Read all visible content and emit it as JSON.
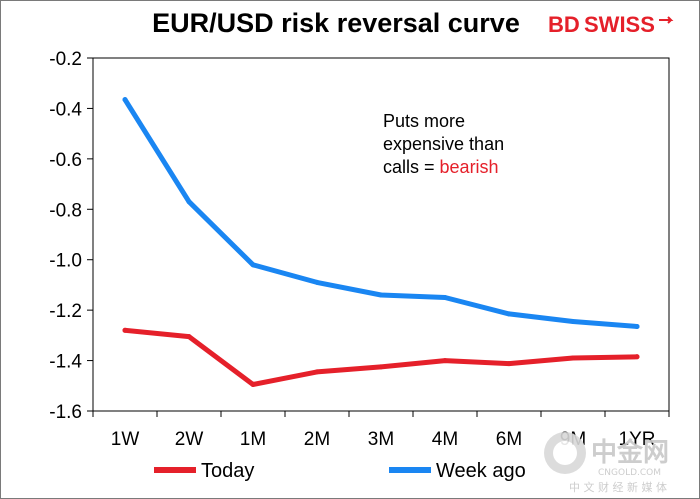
{
  "chart_data": {
    "type": "line",
    "title": "EUR/USD risk reversal curve",
    "categories": [
      "1W",
      "2W",
      "1M",
      "2M",
      "3M",
      "4M",
      "6M",
      "9M",
      "1YR"
    ],
    "series": [
      {
        "name": "Today",
        "color": "#e5202a",
        "values": [
          -1.28,
          -1.305,
          -1.495,
          -1.445,
          -1.425,
          -1.4,
          -1.412,
          -1.39,
          -1.385
        ]
      },
      {
        "name": "Week ago",
        "color": "#1a86f2",
        "values": [
          -0.365,
          -0.77,
          -1.02,
          -1.09,
          -1.14,
          -1.15,
          -1.215,
          -1.245,
          -1.265
        ]
      }
    ],
    "yticks": [
      "-0.2",
      "-0.4",
      "-0.6",
      "-0.8",
      "-1.0",
      "-1.2",
      "-1.4",
      "-1.6"
    ],
    "ylim": [
      -1.6,
      -0.2
    ],
    "grid": false,
    "legend": "bottom",
    "annotation": {
      "lines": [
        "Puts more",
        "expensive than",
        "calls = "
      ],
      "highlight": "bearish",
      "highlight_color": "#e5202a"
    }
  },
  "brand": {
    "left": "BD",
    "right": "SWISS",
    "color_left": "#e5202a",
    "color_right": "#e5202a"
  },
  "watermark": {
    "big": "中金网",
    "small": "CNGOLD.COM",
    "cn": "中 文 财 经 新 媒 体"
  }
}
